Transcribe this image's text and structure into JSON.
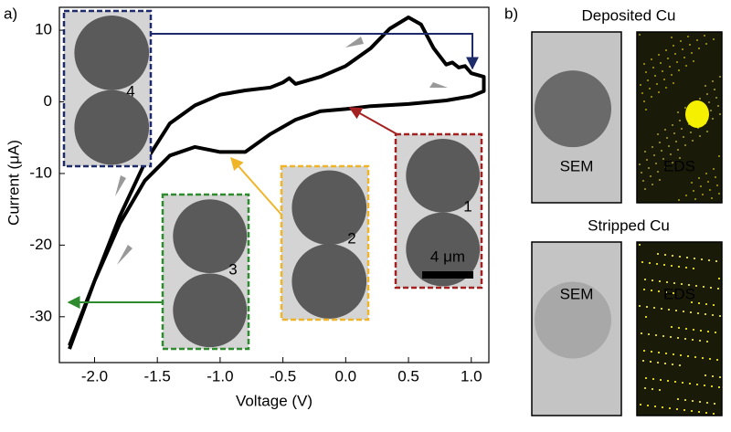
{
  "panel_labels": [
    "a)",
    "b)"
  ],
  "chart_data": {
    "type": "line",
    "xlabel": "Voltage (V)",
    "ylabel": "Current (μA)",
    "x": [
      -2.2,
      -2.0,
      -1.8,
      -1.6,
      -1.4,
      -1.2,
      -1.0,
      -0.8,
      -0.6,
      -0.5,
      -0.45,
      -0.4,
      -0.2,
      0.0,
      0.2,
      0.35,
      0.5,
      0.6,
      0.7,
      0.8,
      0.85,
      0.9,
      0.95,
      1.0,
      1.1,
      1.1,
      1.0,
      0.8,
      0.5,
      0.2,
      0.0,
      -0.2,
      -0.4,
      -0.6,
      -0.8,
      -1.0,
      -1.2,
      -1.4,
      -1.6,
      -1.8,
      -2.0,
      -2.2
    ],
    "values": [
      -34.5,
      -25,
      -16,
      -8.5,
      -3,
      -0.5,
      1.0,
      1.6,
      2.0,
      2.7,
      3.3,
      2.5,
      3.5,
      5.0,
      7.5,
      10.2,
      11.8,
      10.8,
      7.5,
      5.2,
      5.5,
      4.8,
      5.0,
      4.0,
      3.5,
      1.5,
      0.8,
      0.2,
      -0.3,
      -0.6,
      -1.0,
      -1.3,
      -2.5,
      -4.5,
      -7.0,
      -7.0,
      -6.3,
      -7.5,
      -11,
      -17,
      -25,
      -34
    ],
    "color": "#000000",
    "xlim": [
      -2.28,
      1.14
    ],
    "ylim": [
      -36.4,
      13.2
    ],
    "xticks": [
      {
        "value": -2,
        "label": "-2.0"
      },
      -1.5,
      {
        "value": -1,
        "label": "-1.0"
      },
      -0.5,
      {
        "value": 0,
        "label": "0.0"
      },
      0.5,
      {
        "value": 1,
        "label": "1.0"
      }
    ],
    "yticks": [
      10,
      0,
      -10,
      -20,
      -30
    ]
  },
  "insets": [
    {
      "label": "1",
      "color": "#a52020"
    },
    {
      "label": "2",
      "color": "#f0b429"
    },
    {
      "label": "3",
      "color": "#2e8b2e"
    },
    {
      "label": "4",
      "color": "#1d2b6b"
    }
  ],
  "scale_bar": "4 μm",
  "panel_b": [
    {
      "title": "Deposited Cu",
      "images": [
        "SEM",
        "EDS"
      ]
    },
    {
      "title": "Stripped Cu",
      "images": [
        "SEM",
        "EDS"
      ]
    }
  ]
}
